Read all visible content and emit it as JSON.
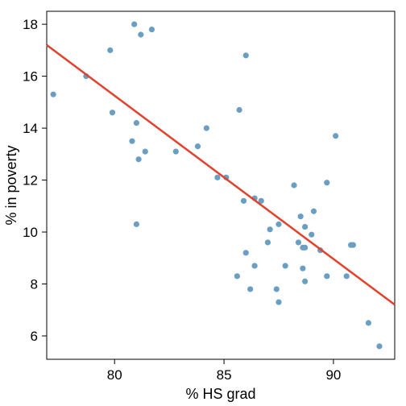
{
  "chart_data": {
    "type": "scatter",
    "xlabel": "% HS grad",
    "ylabel": "% in poverty",
    "xlim": [
      76.9,
      92.8
    ],
    "ylim": [
      5.1,
      18.5
    ],
    "xticks": [
      80,
      85,
      90
    ],
    "yticks": [
      6,
      8,
      10,
      12,
      14,
      16,
      18
    ],
    "grid": false,
    "point_color": "#6a9fc3",
    "line_color": "#e2412b",
    "regression_line": {
      "x": [
        76.9,
        92.8
      ],
      "y": [
        17.2,
        7.2
      ]
    },
    "points": [
      {
        "x": 77.2,
        "y": 15.3
      },
      {
        "x": 78.7,
        "y": 16.0
      },
      {
        "x": 79.8,
        "y": 17.0
      },
      {
        "x": 79.9,
        "y": 14.6
      },
      {
        "x": 80.9,
        "y": 18.0
      },
      {
        "x": 81.2,
        "y": 17.6
      },
      {
        "x": 81.7,
        "y": 17.8
      },
      {
        "x": 81.0,
        "y": 14.2
      },
      {
        "x": 80.8,
        "y": 13.5
      },
      {
        "x": 81.4,
        "y": 13.1
      },
      {
        "x": 81.1,
        "y": 12.8
      },
      {
        "x": 81.0,
        "y": 10.3
      },
      {
        "x": 82.8,
        "y": 13.1
      },
      {
        "x": 83.8,
        "y": 13.3
      },
      {
        "x": 84.2,
        "y": 14.0
      },
      {
        "x": 84.7,
        "y": 12.1
      },
      {
        "x": 85.1,
        "y": 12.1
      },
      {
        "x": 85.7,
        "y": 14.7
      },
      {
        "x": 86.0,
        "y": 16.8
      },
      {
        "x": 85.9,
        "y": 11.2
      },
      {
        "x": 86.4,
        "y": 11.3
      },
      {
        "x": 86.7,
        "y": 11.2
      },
      {
        "x": 87.1,
        "y": 10.1
      },
      {
        "x": 87.5,
        "y": 10.3
      },
      {
        "x": 87.0,
        "y": 9.6
      },
      {
        "x": 86.0,
        "y": 9.2
      },
      {
        "x": 86.4,
        "y": 8.7
      },
      {
        "x": 85.6,
        "y": 8.3
      },
      {
        "x": 86.2,
        "y": 7.8
      },
      {
        "x": 87.4,
        "y": 7.8
      },
      {
        "x": 87.8,
        "y": 8.7
      },
      {
        "x": 87.5,
        "y": 7.3
      },
      {
        "x": 88.2,
        "y": 11.8
      },
      {
        "x": 88.5,
        "y": 10.6
      },
      {
        "x": 88.7,
        "y": 10.2
      },
      {
        "x": 89.0,
        "y": 9.9
      },
      {
        "x": 89.1,
        "y": 10.8
      },
      {
        "x": 88.4,
        "y": 9.6
      },
      {
        "x": 88.6,
        "y": 9.4
      },
      {
        "x": 88.7,
        "y": 9.4
      },
      {
        "x": 89.4,
        "y": 9.3
      },
      {
        "x": 88.6,
        "y": 8.6
      },
      {
        "x": 88.7,
        "y": 8.1
      },
      {
        "x": 89.7,
        "y": 11.9
      },
      {
        "x": 90.1,
        "y": 13.7
      },
      {
        "x": 89.7,
        "y": 8.3
      },
      {
        "x": 90.6,
        "y": 8.3
      },
      {
        "x": 90.8,
        "y": 9.5
      },
      {
        "x": 90.9,
        "y": 9.5
      },
      {
        "x": 91.6,
        "y": 6.5
      },
      {
        "x": 92.1,
        "y": 5.6
      }
    ]
  }
}
